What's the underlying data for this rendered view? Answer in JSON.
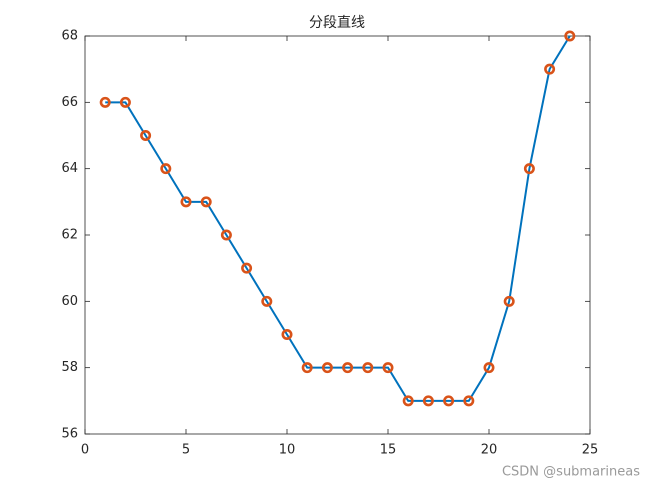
{
  "chart_data": {
    "type": "line",
    "title": "分段直线",
    "x": [
      1,
      2,
      3,
      4,
      5,
      6,
      7,
      8,
      9,
      10,
      11,
      12,
      13,
      14,
      15,
      16,
      17,
      18,
      19,
      20,
      21,
      22,
      23,
      24
    ],
    "series": [
      {
        "color": "#0072bd",
        "marker_color": "#d95319",
        "values": [
          66,
          66,
          65,
          64,
          63,
          63,
          62,
          61,
          60,
          59,
          58,
          58,
          58,
          58,
          58,
          57,
          57,
          57,
          57,
          58,
          60,
          64,
          67,
          68
        ]
      }
    ],
    "xlim": [
      0,
      25
    ],
    "xticks": [
      0,
      5,
      10,
      15,
      20,
      25
    ],
    "ylim": [
      56,
      68
    ],
    "yticks": [
      56,
      58,
      60,
      62,
      64,
      66,
      68
    ],
    "grid": false
  },
  "watermark": "CSDN @submarineas"
}
